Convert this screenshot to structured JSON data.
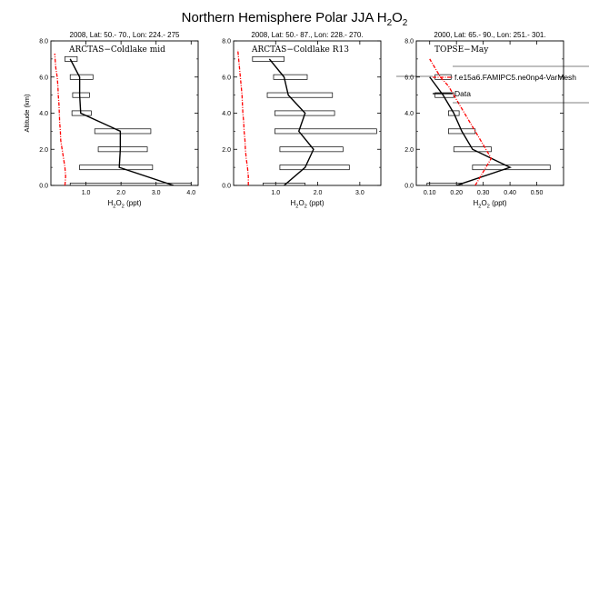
{
  "title": {
    "main": "Northern Hemisphere Polar JJA H",
    "sub1": "2",
    "mid": "O",
    "sub2": "2"
  },
  "chart_data": [
    {
      "type": "line",
      "header": "2008, Lat: 50.- 70., Lon: 224.- 275",
      "campaign": "ARCTAS−Coldlake mid",
      "xlabel": "H2O2 (ppt)",
      "ylabel": "Altitude (km)",
      "xlim": [
        0.0,
        4.2
      ],
      "ylim": [
        0.0,
        8.0
      ],
      "xticks": [
        "1.0",
        "2.0",
        "3.0",
        "4.0"
      ],
      "xtick_values": [
        1.0,
        2.0,
        3.0,
        4.0
      ],
      "yticks": [
        "0.0",
        "2.0",
        "4.0",
        "6.0",
        "8.0"
      ],
      "ytick_values": [
        0.0,
        2.0,
        4.0,
        6.0,
        8.0
      ],
      "observations": {
        "altitude": [
          0.0,
          1.0,
          2.0,
          3.0,
          4.0,
          5.0,
          6.0,
          7.0
        ],
        "mean": [
          3.5,
          1.95,
          1.98,
          1.98,
          0.85,
          0.82,
          0.82,
          0.55
        ],
        "box_low": [
          0.55,
          0.82,
          1.35,
          1.25,
          0.6,
          0.62,
          0.55,
          0.4
        ],
        "box_high": [
          4.0,
          2.9,
          2.75,
          2.85,
          1.15,
          1.1,
          1.2,
          0.75
        ]
      },
      "model": {
        "altitude": [
          0.0,
          0.5,
          1.0,
          1.5,
          2.0,
          2.5,
          3.0,
          3.5,
          4.0,
          4.5,
          5.0,
          5.5,
          6.0,
          6.5,
          7.0,
          7.3
        ],
        "values": [
          0.4,
          0.42,
          0.4,
          0.36,
          0.32,
          0.28,
          0.27,
          0.25,
          0.24,
          0.23,
          0.21,
          0.2,
          0.18,
          0.14,
          0.12,
          0.11
        ]
      }
    },
    {
      "type": "line",
      "header": "2008, Lat: 50.- 87., Lon: 228.- 270.",
      "campaign": "ARCTAS−Coldlake R13",
      "xlabel": "H2O2 (ppt)",
      "ylabel": "Altitude (km)",
      "xlim": [
        0.0,
        3.5
      ],
      "ylim": [
        0.0,
        8.0
      ],
      "xticks": [
        "1.0",
        "2.0",
        "3.0"
      ],
      "xtick_values": [
        1.0,
        2.0,
        3.0
      ],
      "yticks": [
        "0.0",
        "2.0",
        "4.0",
        "6.0",
        "8.0"
      ],
      "ytick_values": [
        0.0,
        2.0,
        4.0,
        6.0,
        8.0
      ],
      "observations": {
        "altitude": [
          0.0,
          1.0,
          2.0,
          3.0,
          4.0,
          5.0,
          6.0,
          7.0
        ],
        "mean": [
          1.2,
          1.7,
          1.9,
          1.55,
          1.7,
          1.3,
          1.2,
          0.85
        ],
        "box_low": [
          0.7,
          1.1,
          1.1,
          0.98,
          0.98,
          0.8,
          0.95,
          0.45
        ],
        "box_high": [
          1.7,
          2.75,
          2.6,
          3.4,
          2.4,
          2.35,
          1.75,
          1.2
        ]
      },
      "model": {
        "altitude": [
          0.0,
          0.5,
          1.0,
          1.5,
          2.0,
          2.5,
          3.0,
          3.5,
          4.0,
          4.5,
          5.0,
          5.5,
          6.0,
          6.5,
          7.0,
          7.5
        ],
        "values": [
          0.35,
          0.35,
          0.33,
          0.3,
          0.28,
          0.27,
          0.25,
          0.24,
          0.22,
          0.21,
          0.2,
          0.18,
          0.16,
          0.14,
          0.12,
          0.1
        ]
      }
    },
    {
      "type": "line",
      "header": "2000, Lat: 65.- 90., Lon: 251.- 301.",
      "campaign": "TOPSE−May",
      "xlabel": "H2O2 (ppt)",
      "ylabel": "Altitude (km)",
      "xlim": [
        0.05,
        0.6
      ],
      "ylim": [
        0.0,
        8.0
      ],
      "xticks": [
        "0.10",
        "0.20",
        "0.30",
        "0.40",
        "0.50"
      ],
      "xtick_values": [
        0.1,
        0.2,
        0.3,
        0.4,
        0.5
      ],
      "yticks": [
        "0.0",
        "2.0",
        "4.0",
        "6.0",
        "8.0"
      ],
      "ytick_values": [
        0.0,
        2.0,
        4.0,
        6.0,
        8.0
      ],
      "legend": {
        "position": "top-right",
        "model_label": "f.e15a6.FAMIPC5.ne0np4-VarMesh",
        "obs_label": "Data"
      },
      "observations": {
        "altitude": [
          0.0,
          1.0,
          2.0,
          3.0,
          4.0,
          5.0,
          6.0
        ],
        "mean": [
          0.2,
          0.4,
          0.26,
          0.22,
          0.19,
          0.15,
          0.1
        ],
        "box_low": [
          0.09,
          0.26,
          0.19,
          0.17,
          0.17,
          0.12,
          0.12
        ],
        "box_high": [
          0.22,
          0.55,
          0.33,
          0.27,
          0.21,
          0.19,
          0.18
        ]
      },
      "model": {
        "altitude": [
          0.0,
          0.5,
          1.0,
          1.5,
          2.0,
          2.5,
          3.0,
          3.5,
          4.0,
          4.5,
          5.0,
          5.5,
          6.0,
          6.5,
          7.0
        ],
        "values": [
          0.27,
          0.29,
          0.31,
          0.33,
          0.31,
          0.29,
          0.27,
          0.25,
          0.23,
          0.21,
          0.19,
          0.17,
          0.14,
          0.12,
          0.1
        ]
      }
    }
  ]
}
